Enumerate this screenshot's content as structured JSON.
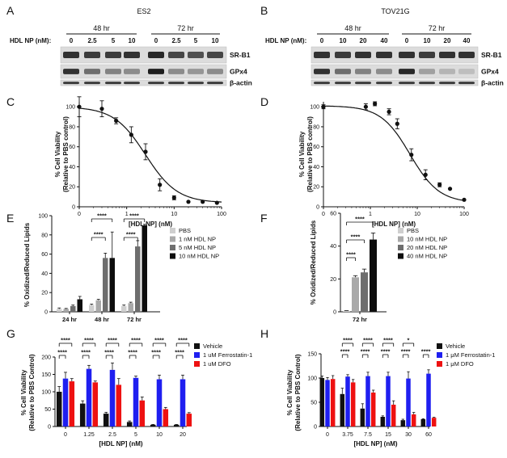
{
  "panels": {
    "A": {
      "letter": "A",
      "cell_line": "ES2",
      "t1": "48 hr",
      "t2": "72 hr",
      "dose_label": "HDL NP (nM):",
      "doses": [
        "0",
        "2.5",
        "5",
        "10",
        "0",
        "2.5",
        "5",
        "10"
      ],
      "bands": [
        "SR-B1",
        "GPx4",
        "β-actin"
      ]
    },
    "B": {
      "letter": "B",
      "cell_line": "TOV21G",
      "t1": "48 hr",
      "t2": "72 hr",
      "dose_label": "HDL NP (nM):",
      "doses": [
        "0",
        "10",
        "20",
        "40",
        "0",
        "10",
        "20",
        "40"
      ],
      "bands": [
        "SR-B1",
        "GPx4",
        "β-actin"
      ]
    },
    "C": {
      "letter": "C"
    },
    "D": {
      "letter": "D"
    },
    "E": {
      "letter": "E"
    },
    "F": {
      "letter": "F"
    },
    "G": {
      "letter": "G"
    },
    "H": {
      "letter": "H"
    }
  },
  "blot_intensity": {
    "A": {
      "SR-B1": [
        0.85,
        0.8,
        0.8,
        0.85,
        0.9,
        0.75,
        0.7,
        0.75
      ],
      "GPx4": [
        0.85,
        0.55,
        0.45,
        0.4,
        0.95,
        0.4,
        0.35,
        0.4
      ],
      "β-actin": [
        0.8,
        0.8,
        0.8,
        0.8,
        0.8,
        0.8,
        0.8,
        0.8
      ]
    },
    "B": {
      "SR-B1": [
        0.85,
        0.8,
        0.85,
        0.85,
        0.85,
        0.8,
        0.85,
        0.85
      ],
      "GPx4": [
        0.85,
        0.55,
        0.45,
        0.4,
        0.9,
        0.3,
        0.2,
        0.15
      ],
      "β-actin": [
        0.8,
        0.8,
        0.8,
        0.8,
        0.8,
        0.8,
        0.8,
        0.8
      ]
    }
  },
  "chart_data": [
    {
      "panel": "C",
      "type": "scatter",
      "xscale": "log",
      "xlabel": "[HDL NP] (nM)",
      "ylabel": [
        "% Cell Viability",
        "(Relative to PBS control)"
      ],
      "xticks": [
        "0",
        "1",
        "10",
        "100"
      ],
      "yticks": [
        "0",
        "20",
        "40",
        "60",
        "80",
        "100"
      ],
      "ylim": [
        0,
        105
      ],
      "x": [
        0.1,
        0.3,
        0.6,
        1.25,
        2.5,
        5,
        10,
        20,
        40,
        80
      ],
      "y": [
        100,
        98,
        86,
        72,
        55,
        22,
        9,
        5,
        5,
        4
      ],
      "err": [
        10,
        8,
        3,
        8,
        8,
        6,
        2,
        1,
        1,
        1
      ],
      "fit": {
        "top": 100,
        "bottom": 4,
        "ec50": 2.5,
        "hill": 1.3
      }
    },
    {
      "panel": "D",
      "type": "scatter",
      "xscale": "log",
      "xlabel": "[HDL NP] (nM)",
      "ylabel": [
        "% Cell Viability",
        "(Relative to PBS control)"
      ],
      "xticks": [
        "0",
        "1",
        "10",
        "100"
      ],
      "yticks": [
        "0",
        "20",
        "40",
        "60",
        "80",
        "100"
      ],
      "ylim": [
        0,
        105
      ],
      "x": [
        0.1,
        0.8,
        1.25,
        2.5,
        3.75,
        7.5,
        15,
        30,
        50,
        100
      ],
      "y": [
        100,
        100,
        103,
        95,
        83,
        52,
        32,
        22,
        18,
        7
      ],
      "err": [
        2,
        3,
        2,
        3,
        5,
        6,
        5,
        2,
        1,
        1
      ],
      "fit": {
        "top": 101,
        "bottom": 4,
        "ec50": 7,
        "hill": 1.4
      }
    },
    {
      "panel": "E",
      "type": "bar",
      "ylabel": "% Oxidized/Reduced Lipids",
      "categories": [
        "24 hr",
        "48 hr",
        "72 hr"
      ],
      "yticks": [
        "0",
        "20",
        "40",
        "60",
        "80",
        "100"
      ],
      "ylim": [
        0,
        100
      ],
      "series": [
        {
          "name": "PBS",
          "color": "#cfcfcf",
          "values": [
            3,
            7,
            6
          ],
          "err": [
            1,
            1,
            1
          ]
        },
        {
          "name": "1 nM HDL NP",
          "color": "#a9a9a9",
          "values": [
            3,
            12,
            9
          ],
          "err": [
            0.5,
            1,
            1
          ]
        },
        {
          "name": "5 nM HDL NP",
          "color": "#6e6e6e",
          "values": [
            6,
            56,
            68
          ],
          "err": [
            1,
            5,
            6
          ]
        },
        {
          "name": "10 nM HDL NP",
          "color": "#0d0d0d",
          "values": [
            13,
            56,
            90
          ],
          "err": [
            3,
            27,
            1
          ]
        }
      ],
      "sig_brackets": [
        {
          "cat": 1,
          "from": 0,
          "to": 3,
          "label": "****"
        },
        {
          "cat": 1,
          "from": 0,
          "to": 2,
          "label": "****"
        },
        {
          "cat": 2,
          "from": 0,
          "to": 3,
          "label": "****"
        },
        {
          "cat": 2,
          "from": 0,
          "to": 2,
          "label": "****"
        }
      ]
    },
    {
      "panel": "F",
      "type": "bar",
      "ylabel": "% Oxidized/Reduced Lipids",
      "categories": [
        "72 hr"
      ],
      "yticks": [
        "0",
        "20",
        "40",
        "60"
      ],
      "ylim": [
        0,
        60
      ],
      "series": [
        {
          "name": "PBS",
          "color": "#cfcfcf",
          "values": [
            0.5
          ],
          "err": [
            0.2
          ]
        },
        {
          "name": "10 nM HDL NP",
          "color": "#a9a9a9",
          "values": [
            21
          ],
          "err": [
            1
          ]
        },
        {
          "name": "20 nM HDL NP",
          "color": "#6e6e6e",
          "values": [
            24
          ],
          "err": [
            2
          ]
        },
        {
          "name": "40 nM HDL NP",
          "color": "#0d0d0d",
          "values": [
            44
          ],
          "err": [
            4
          ]
        }
      ],
      "sig_brackets": [
        {
          "cat": 0,
          "from": 0,
          "to": 3,
          "label": "****"
        },
        {
          "cat": 0,
          "from": 0,
          "to": 2,
          "label": "****"
        },
        {
          "cat": 0,
          "from": 0,
          "to": 1,
          "label": "****"
        }
      ]
    },
    {
      "panel": "G",
      "type": "bar",
      "xlabel": "[HDL NP] (nM)",
      "ylabel": [
        "% Cell Viability",
        "(Relative to PBS Control)"
      ],
      "categories": [
        "0",
        "1.25",
        "2.5",
        "5",
        "10",
        "20"
      ],
      "yticks": [
        "0",
        "50",
        "100",
        "150",
        "200"
      ],
      "ylim": [
        0,
        200
      ],
      "series": [
        {
          "name": "Vehicle",
          "color": "#111111",
          "values": [
            100,
            66,
            37,
            13,
            5,
            5
          ],
          "err": [
            15,
            8,
            4,
            3,
            1,
            1
          ]
        },
        {
          "name": "1 uM Ferrostatin-1",
          "color": "#1f1ff0",
          "values": [
            138,
            166,
            163,
            140,
            136,
            136
          ],
          "err": [
            18,
            10,
            20,
            5,
            12,
            12
          ]
        },
        {
          "name": "1 uM DFO",
          "color": "#ee1111",
          "values": [
            130,
            127,
            120,
            75,
            50,
            37
          ],
          "err": [
            8,
            4,
            18,
            10,
            5,
            3
          ]
        }
      ],
      "sig_brackets_per_cat": [
        "****",
        "****"
      ]
    },
    {
      "panel": "H",
      "type": "bar",
      "xlabel": "[HDL NP] (nM)",
      "ylabel": [
        "% Cell Viability",
        "(Relative to PBS Control)"
      ],
      "categories": [
        "0",
        "3.75",
        "7.5",
        "15",
        "30",
        "60"
      ],
      "yticks": [
        "0",
        "50",
        "100",
        "150"
      ],
      "ylim": [
        0,
        150
      ],
      "series": [
        {
          "name": "Vehicle",
          "color": "#111111",
          "values": [
            100,
            67,
            37,
            20,
            13,
            15
          ],
          "err": [
            4,
            12,
            10,
            2,
            2,
            1
          ]
        },
        {
          "name": "1 μM Ferrostatin-1",
          "color": "#1f1ff0",
          "values": [
            96,
            103,
            104,
            104,
            99,
            109
          ],
          "err": [
            5,
            4,
            8,
            8,
            14,
            8
          ]
        },
        {
          "name": "1 μM DFO",
          "color": "#ee1111",
          "values": [
            98,
            91,
            70,
            45,
            25,
            18
          ],
          "err": [
            7,
            6,
            5,
            8,
            4,
            1
          ]
        }
      ],
      "sig_brackets": [
        {
          "cat": 1,
          "labels": [
            "****",
            "****"
          ]
        },
        {
          "cat": 2,
          "labels": [
            "****",
            "****"
          ]
        },
        {
          "cat": 3,
          "labels": [
            "****",
            "****"
          ]
        },
        {
          "cat": 4,
          "labels": [
            "*",
            "****"
          ]
        },
        {
          "cat": 5,
          "labels": [
            "****"
          ]
        }
      ]
    }
  ]
}
